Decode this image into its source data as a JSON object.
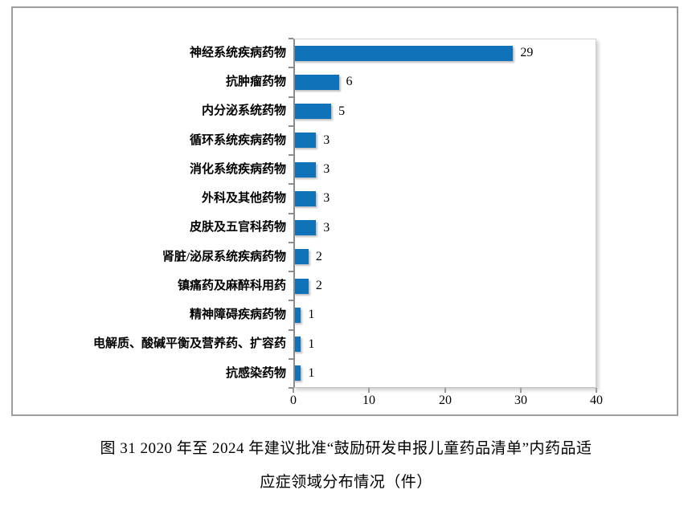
{
  "figure": {
    "caption_line1": "图 31   2020 年至 2024 年建议批准“鼓励研发申报儿童药品清单”内药品适",
    "caption_line2": "应症领域分布情况（件）"
  },
  "chart_data": {
    "type": "bar",
    "orientation": "horizontal",
    "categories": [
      "神经系统疾病药物",
      "抗肿瘤药物",
      "内分泌系统药物",
      "循环系统疾病药物",
      "消化系统疾病药物",
      "外科及其他药物",
      "皮肤及五官科药物",
      "肾脏/泌尿系统疾病药物",
      "镇痛药及麻醉科用药",
      "精神障碍疾病药物",
      "电解质、酸碱平衡及营养药、扩容药",
      "抗感染药物"
    ],
    "values": [
      29,
      6,
      5,
      3,
      3,
      3,
      3,
      2,
      2,
      1,
      1,
      1
    ],
    "value_labels": [
      "29",
      "6",
      "5",
      "3",
      "3",
      "3",
      "3",
      "2",
      "2",
      "1",
      "1",
      "1"
    ],
    "title": "",
    "xlabel": "",
    "ylabel": "",
    "xlim": [
      0,
      40
    ],
    "x_ticks": [
      0,
      10,
      20,
      30,
      40
    ],
    "x_tick_labels": [
      "0",
      "10",
      "20",
      "30",
      "40"
    ],
    "grid": false,
    "legend": false,
    "bar_color": "#1072b8",
    "frame_border_color": "#9e9e9e",
    "axis_color": "#8c8c8c"
  }
}
